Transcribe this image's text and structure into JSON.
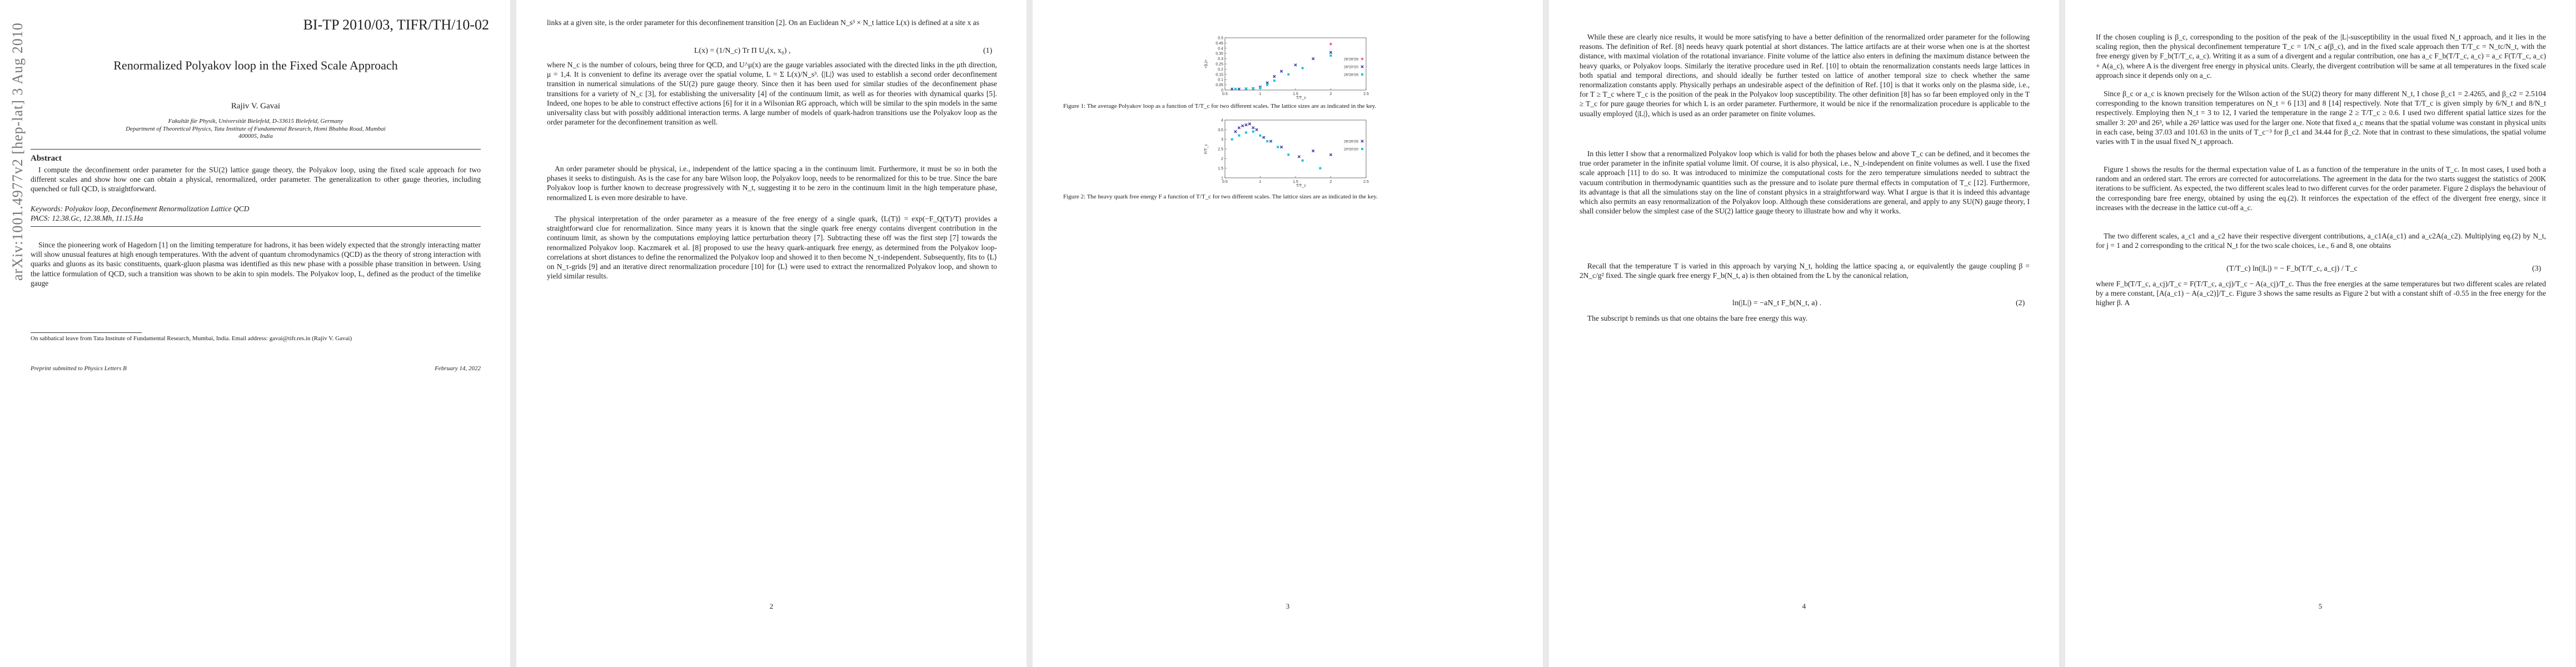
{
  "arxiv_stamp": "arXiv:1001.4977v2 [hep-lat] 3 Aug 2010",
  "p1": {
    "report": "BI-TP 2010/03, TIFR/TH/10-02",
    "title": "Renormalized Polyakov loop in the Fixed Scale Approach",
    "author": "Rajiv V. Gavai",
    "affil1": "Fakultät für Physik, Universität Bielefeld, D-33615 Bielefeld, Germany",
    "affil2": "Department of Theoretical Physics, Tata Institute of Fundamental Research, Homi Bhabha Road, Mumbai 400005, India",
    "abstract_head": "Abstract",
    "abstract": "I compute the deconfinement order parameter for the SU(2) lattice gauge theory, the Polyakov loop, using the fixed scale approach for two different scales and show how one can obtain a physical, renormalized, order parameter. The generalization to other gauge theories, including quenched or full QCD, is straightforward.",
    "keywords": "Keywords: Polyakov loop, Deconfinement Renormalization Lattice QCD",
    "pacs": "PACS: 12.38.Gc, 12.38.Mh, 11.15.Ha",
    "intro": "Since the pioneering work of Hagedorn [1] on the limiting temperature for hadrons, it has been widely expected that the strongly interacting matter will show unusual features at high enough temperatures. With the advent of quantum chromodynamics (QCD) as the theory of strong interaction with quarks and gluons as its basic constituents, quark-gluon plasma was identified as this new phase with a possible phase transition in between. Using the lattice formulation of QCD, such a transition was shown to be akin to spin models. The Polyakov loop, L, defined as the product of the timelike gauge",
    "footnote": "On sabbatical leave from Tata Institute of Fundamental Research, Mumbai, India. Email address: gavai@tifr.res.in (Rajiv V. Gavai)",
    "footer_left": "Preprint submitted to Physics Letters B",
    "footer_right": "February 14, 2022"
  },
  "p2": {
    "t1": "links at a given site, is the order parameter for this deconfinement transition [2]. On an Euclidean N_s³ × N_t lattice L(x) is defined at a site x as",
    "eq1": "L(x) = (1/N_c) Tr Π U₄(x, x₀) ,",
    "eq1n": "(1)",
    "t2": "where N_c is the number of colours, being three for QCD, and U^μ(x) are the gauge variables associated with the directed links in the μth direction, μ = 1,4. It is convenient to define its average over the spatial volume, L = Σ L(x)/N_s³. ⟨|L|⟩ was used to establish a second order deconfinement transition in numerical simulations of the SU(2) pure gauge theory. Since then it has been used for similar studies of the deconfinement phase transitions for a variety of N_c [3], for establishing the universality [4] of the continuum limit, as well as for theories with dynamical quarks [5]. Indeed, one hopes to be able to construct effective actions [6] for it in a Wilsonian RG approach, which will be similar to the spin models in the same universality class but with possibly additional interaction terms. A large number of models of quark-hadron transitions use the Polyakov loop as the order parameter for the deconfinement transition as well.",
    "t3": "An order parameter should be physical, i.e., independent of the lattice spacing a in the continuum limit. Furthermore, it must be so in both the phases it seeks to distinguish. As is the case for any bare Wilson loop, the Polyakov loop, needs to be renormalized for this to be true. Since the bare Polyakov loop is further known to decrease progressively with N_t, suggesting it to be zero in the continuum limit in the high temperature phase, renormalized L is even more desirable to have.",
    "t4": "The physical interpretation of the order parameter as a measure of the free energy of a single quark, ⟨L(T)⟩ = exp(−F_Q(T)/T) provides a straightforward clue for renormalization. Since many years it is known that the single quark free energy contains divergent contribution in the continuum limit, as shown by the computations employing lattice perturbation theory [7]. Subtracting these off was the first step [7] towards the renormalized Polyakov loop. Kaczmarek et al. [8] proposed to use the heavy quark-antiquark free energy, as determined from the Polyakov loop-correlations at short distances to define the renormalized the Polyakov loop and showed it to then become N_τ-independent. Subsequently, fits to ⟨L⟩ on N_τ-grids [9] and an iterative direct renormalization procedure [10] for ⟨L⟩ were used to extract the renormalized Polyakov loop, and shown to yield similar results.",
    "pnum": "2"
  },
  "p3": {
    "fig1_caption": "Figure 1: The average Polyakov loop as a function of T/T_c for two different scales. The lattice sizes are as indicated in the key.",
    "fig2_caption": "Figure 2: The heavy quark free energy F a function of T/T_c for two different scales. The lattice sizes are as indicated in the key.",
    "pnum": "3"
  },
  "chart_data": [
    {
      "type": "scatter",
      "title": "",
      "xlabel": "T/T_c",
      "ylabel": "<|L|>",
      "xlim": [
        0.5,
        2.5
      ],
      "ylim": [
        0,
        0.5
      ],
      "xticks": [
        "0.5",
        "1",
        "1.5",
        "2",
        "2.5"
      ],
      "yticks": [
        "0",
        "0.05",
        "0.1",
        "0.15",
        "0.2",
        "0.25",
        "0.3",
        "0.35",
        "0.4",
        "0.45",
        "0.5"
      ],
      "legend_position": "right",
      "series": [
        {
          "name": "26³26³28",
          "color": "#e0245e",
          "marker": "plus",
          "x": [
            2.0
          ],
          "y": [
            0.44
          ]
        },
        {
          "name": "26³20³20",
          "color": "#2a2aa8",
          "marker": "cross",
          "x": [
            0.6,
            0.7,
            0.8,
            0.9,
            1.0,
            1.1,
            1.2,
            1.3,
            1.5,
            1.75,
            2.0
          ],
          "y": [
            0.01,
            0.01,
            0.012,
            0.015,
            0.03,
            0.07,
            0.13,
            0.18,
            0.24,
            0.3,
            0.36
          ]
        },
        {
          "name": "26³26³26",
          "color": "#16c6d8",
          "marker": "square",
          "x": [
            0.65,
            0.8,
            0.9,
            1.0,
            1.1,
            1.2,
            1.4,
            1.6,
            2.0
          ],
          "y": [
            0.01,
            0.012,
            0.014,
            0.02,
            0.05,
            0.09,
            0.15,
            0.21,
            0.33
          ]
        }
      ]
    },
    {
      "type": "scatter",
      "title": "",
      "xlabel": "T/T_c",
      "ylabel": "F/T_c",
      "xlim": [
        0.5,
        2.5
      ],
      "ylim": [
        1,
        4
      ],
      "xticks": [
        "0.5",
        "1",
        "1.5",
        "2",
        "2.5"
      ],
      "yticks": [
        "1",
        "1.5",
        "2",
        "2.5",
        "3",
        "3.5",
        "4"
      ],
      "legend_position": "right",
      "series": [
        {
          "name": "26³26³26",
          "color": "#2a2aa8",
          "marker": "cross",
          "x": [
            0.65,
            0.7,
            0.75,
            0.8,
            0.85,
            0.9,
            0.95,
            1.05,
            1.15,
            1.3,
            1.55,
            1.75,
            2.0
          ],
          "y": [
            3.4,
            3.6,
            3.7,
            3.75,
            3.8,
            3.6,
            3.5,
            3.1,
            2.9,
            2.6,
            2.1,
            2.4,
            2.2
          ]
        },
        {
          "name": "20³20³20",
          "color": "#16c6d8",
          "marker": "square",
          "x": [
            0.6,
            0.7,
            0.8,
            0.9,
            1.0,
            1.1,
            1.25,
            1.4,
            1.6,
            1.85
          ],
          "y": [
            3.0,
            3.2,
            3.35,
            3.4,
            3.2,
            2.9,
            2.6,
            2.2,
            1.9,
            1.5
          ]
        }
      ]
    }
  ],
  "p4": {
    "t1": "While these are clearly nice results, it would be more satisfying to have a better definition of the renormalized order parameter for the following reasons. The definition of Ref. [8] needs heavy quark potential at short distances. The lattice artifacts are at their worse when one is at the shortest distance, with maximal violation of the rotational invariance. Finite volume of the lattice also enters in defining the maximum distance between the heavy quarks, or Polyakov loops. Similarly the iterative procedure used in Ref. [10] to obtain the renormalization constants needs large lattices in both spatial and temporal directions, and should ideally be further tested on lattice of another temporal size to check whether the same renormalization constants apply. Physically perhaps an undesirable aspect of the definition of Ref. [10] is that it works only on the plasma side, i.e., for T ≥ T_c where T_c is the position of the peak in the Polyakov loop susceptibility. The other definition [8] has so far been employed only in the T ≥ T_c for pure gauge theories for which L is an order parameter. Furthermore, it would be nice if the renormalization procedure is applicable to the usually employed ⟨|L|⟩, which is used as an order parameter on finite volumes.",
    "t2": "In this letter I show that a renormalized Polyakov loop which is valid for both the phases below and above T_c can be defined, and it becomes the true order parameter in the infinite spatial volume limit. Of course, it is also physical, i.e., N_t-independent on finite volumes as well. I use the fixed scale approach [11] to do so. It was introduced to minimize the computational costs for the zero temperature simulations needed to subtract the vacuum contribution in thermodynamic quantities such as the pressure and to isolate pure thermal effects in computation of T_c [12]. Furthermore, its advantage is that all the simulations stay on the line of constant physics in a straightforward way. What I argue is that it is indeed this advantage which also permits an easy renormalization of the Polyakov loop. Although these considerations are general, and apply to any SU(N) gauge theory, I shall consider below the simplest case of the SU(2) lattice gauge theory to illustrate how and why it works.",
    "t3": "Recall that the temperature T is varied in this approach by varying N_t, holding the lattice spacing a, or equivalently the gauge coupling β = 2N_c/g² fixed. The single quark free energy F_b(N_t, a) is then obtained from the L by the canonical relation,",
    "eq2": "ln(|L|) = −aN_t F_b(N_t, a) .",
    "eq2n": "(2)",
    "t4": "The subscript b reminds us that one obtains the bare free energy this way.",
    "pnum": "4"
  },
  "p5": {
    "t1": "If the chosen coupling is β_c, corresponding to the position of the peak of the |L|-susceptibility in the usual fixed N_t approach, and it lies in the scaling region, then the physical deconfinement temperature T_c = 1/N_c a(β_c), and in the fixed scale approach then T/T_c = N_tc/N_t, with the free energy given by F_b(T/T_c, a_c). Writing it as a sum of a divergent and a regular contribution, one has a_c F_b(T/T_c, a_c) = a_c F(T/T_c, a_c) + A(a_c), where A is the divergent free energy in physical units. Clearly, the divergent contribution will be same at all temperatures in the fixed scale approach since it depends only on a_c.",
    "t2": "Since β_c or a_c is known precisely for the Wilson action of the SU(2) theory for many different N_t, I chose β_c1 = 2.4265, and β_c2 = 2.5104 corresponding to the known transition temperatures on N_t = 6 [13] and 8 [14] respectively. Note that T/T_c is given simply by 6/N_t and 8/N_t respectively. Employing then N_t = 3 to 12, I varied the temperature in the range 2 ≥ T/T_c ≥ 0.6. I used two different spatial lattice sizes for the smaller 3: 20³ and 26³, while a 26³ lattice was used for the larger one. Note that fixed a_c means that the spatial volume was constant in physical units in each case, being 37.03 and 101.63 in the units of T_c⁻³ for β_c1 and 34.44 for β_c2. Note that in contrast to these simulations, the spatial volume varies with T in the usual fixed N_t approach.",
    "t3": "Figure 1 shows the results for the thermal expectation value of L as a function of the temperature in the units of T_c. In most cases, I used both a random and an ordered start. The errors are corrected for autocorrelations. The agreement in the data for the two starts suggest the statistics of 200K iterations to be sufficient. As expected, the two different scales lead to two different curves for the order parameter. Figure 2 displays the behaviour of the corresponding bare free energy, obtained by using the eq.(2). It reinforces the expectation of the effect of the divergent free energy, since it increases with the decrease in the lattice cut-off a_c.",
    "t4": "The two different scales, a_c1 and a_c2 have their respective divergent contributions, a_c1A(a_c1) and a_c2A(a_c2). Multiplying eq.(2) by N_t, for j = 1 and 2 corresponding to the critical N_t for the two scale choices, i.e., 6 and 8, one obtains",
    "eq3": "(T/T_c) ln(|L|) = − F_b(T/T_c, a_cj) / T_c",
    "eq3n": "(3)",
    "t5": "where F_b(T/T_c, a_cj)/T_c = F(T/T_c, a_cj)/T_c − A(a_cj)/T_c. Thus the free energies at the same temperatures but two different scales are related by a mere constant, [A(a_c1) − A(a_c2)]/T_c. Figure 3 shows the same results as Figure 2 but with a constant shift of -0.55 in the free energy for the higher β. A",
    "pnum": "5"
  }
}
